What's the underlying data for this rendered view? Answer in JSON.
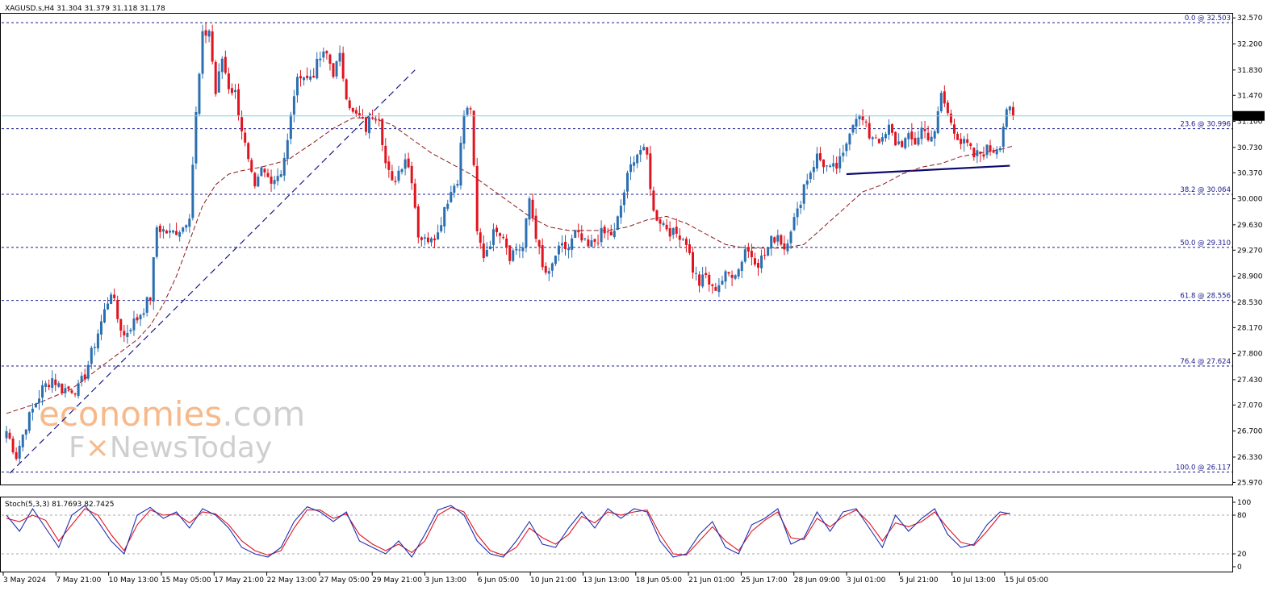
{
  "header": {
    "symbol_info": "XAGUSD.s,H4  31.304 31.379 31.118 31.178"
  },
  "stoch": {
    "label": "Stoch(5,3,3) 81.7693 82.7425",
    "levels": [
      "100",
      "80",
      "20",
      "0"
    ]
  },
  "watermark": {
    "line1_a": "economies",
    "line1_b": ".com",
    "line2_a": "F",
    "line2_b": "NewsToday"
  },
  "colors": {
    "bull": "#2a6fb0",
    "bear": "#e0141e",
    "ma": "#8b1a1a",
    "fib": "#1a1a8c",
    "stoch_main": "#1f2fb0",
    "stoch_signal": "#e0141e",
    "price_line": "#7fd4e0",
    "price_tag_bg": "#000000",
    "wm_orange": "#f7b98a"
  },
  "chart_data": {
    "type": "candlestick",
    "symbol": "XAGUSD.s",
    "timeframe": "H4",
    "ohlc_last": {
      "open": 31.304,
      "high": 31.379,
      "low": 31.118,
      "close": 31.178
    },
    "current_price": "31.178",
    "y_ticks": [
      "32.570",
      "32.200",
      "31.830",
      "31.470",
      "31.100",
      "30.730",
      "30.370",
      "30.000",
      "29.630",
      "29.270",
      "28.900",
      "28.530",
      "28.170",
      "27.800",
      "27.430",
      "27.070",
      "26.700",
      "26.330",
      "25.970"
    ],
    "ylim": [
      25.94,
      32.63
    ],
    "x_ticks": [
      "3 May 2024",
      "7 May 21:00",
      "10 May 13:00",
      "15 May 05:00",
      "17 May 21:00",
      "22 May 13:00",
      "27 May 05:00",
      "29 May 21:00",
      "3 Jun 13:00",
      "6 Jun 05:00",
      "10 Jun 21:00",
      "13 Jun 13:00",
      "18 Jun 05:00",
      "21 Jun 01:00",
      "25 Jun 17:00",
      "28 Jun 09:00",
      "3 Jul 01:00",
      "5 Jul 21:00",
      "10 Jul 13:00",
      "15 Jul 05:00"
    ],
    "fib_levels": [
      {
        "label": "0.0 @ 32.503",
        "value": 32.503
      },
      {
        "label": "23.6 @ 30.996",
        "value": 30.996
      },
      {
        "label": "38.2 @ 30.064",
        "value": 30.064
      },
      {
        "label": "50.0 @ 29.310",
        "value": 29.31
      },
      {
        "label": "61.8 @ 28.556",
        "value": 28.556
      },
      {
        "label": "76.4 @ 27.624",
        "value": 27.624
      },
      {
        "label": "100.0 @ 26.117",
        "value": 26.117
      }
    ],
    "close_path": [
      [
        0,
        26.7
      ],
      [
        3,
        26.35
      ],
      [
        6,
        26.8
      ],
      [
        8,
        27.0
      ],
      [
        11,
        27.3
      ],
      [
        14,
        27.45
      ],
      [
        17,
        27.3
      ],
      [
        20,
        27.3
      ],
      [
        22,
        27.3
      ],
      [
        24,
        27.5
      ],
      [
        26,
        27.8
      ],
      [
        28,
        28.1
      ],
      [
        30,
        28.4
      ],
      [
        32,
        28.7
      ],
      [
        34,
        28.3
      ],
      [
        36,
        28.05
      ],
      [
        38,
        28.2
      ],
      [
        40,
        28.3
      ],
      [
        42,
        28.45
      ],
      [
        44,
        28.6
      ],
      [
        46,
        29.6
      ],
      [
        48,
        29.55
      ],
      [
        50,
        29.5
      ],
      [
        52,
        29.55
      ],
      [
        54,
        29.6
      ],
      [
        56,
        29.8
      ],
      [
        58,
        31.2
      ],
      [
        60,
        32.3
      ],
      [
        62,
        32.4
      ],
      [
        64,
        31.5
      ],
      [
        66,
        32.0
      ],
      [
        68,
        31.6
      ],
      [
        70,
        31.5
      ],
      [
        72,
        31.0
      ],
      [
        74,
        30.5
      ],
      [
        76,
        30.1
      ],
      [
        78,
        30.4
      ],
      [
        80,
        30.3
      ],
      [
        82,
        30.3
      ],
      [
        84,
        30.4
      ],
      [
        86,
        30.8
      ],
      [
        88,
        31.5
      ],
      [
        90,
        31.8
      ],
      [
        92,
        31.7
      ],
      [
        94,
        31.8
      ],
      [
        96,
        32.0
      ],
      [
        98,
        32.05
      ],
      [
        100,
        31.8
      ],
      [
        102,
        32.0
      ],
      [
        104,
        31.5
      ],
      [
        106,
        31.2
      ],
      [
        108,
        31.15
      ],
      [
        110,
        31.0
      ],
      [
        112,
        31.2
      ],
      [
        114,
        31.2
      ],
      [
        116,
        30.5
      ],
      [
        118,
        30.2
      ],
      [
        120,
        30.4
      ],
      [
        122,
        30.6
      ],
      [
        124,
        30.3
      ],
      [
        126,
        29.5
      ],
      [
        128,
        29.4
      ],
      [
        130,
        29.5
      ],
      [
        132,
        29.5
      ],
      [
        134,
        29.9
      ],
      [
        136,
        30.1
      ],
      [
        138,
        30.3
      ],
      [
        140,
        31.2
      ],
      [
        142,
        31.3
      ],
      [
        144,
        29.5
      ],
      [
        146,
        29.2
      ],
      [
        148,
        29.4
      ],
      [
        150,
        29.6
      ],
      [
        152,
        29.5
      ],
      [
        154,
        29.2
      ],
      [
        156,
        29.3
      ],
      [
        158,
        29.3
      ],
      [
        160,
        30.0
      ],
      [
        162,
        29.5
      ],
      [
        164,
        29.0
      ],
      [
        166,
        28.9
      ],
      [
        168,
        29.2
      ],
      [
        170,
        29.3
      ],
      [
        172,
        29.3
      ],
      [
        174,
        29.5
      ],
      [
        176,
        29.4
      ],
      [
        178,
        29.3
      ],
      [
        180,
        29.4
      ],
      [
        182,
        29.5
      ],
      [
        184,
        29.5
      ],
      [
        186,
        29.5
      ],
      [
        188,
        29.9
      ],
      [
        190,
        30.3
      ],
      [
        192,
        30.6
      ],
      [
        194,
        30.7
      ],
      [
        196,
        30.6
      ],
      [
        198,
        29.8
      ],
      [
        200,
        29.7
      ],
      [
        202,
        29.6
      ],
      [
        204,
        29.5
      ],
      [
        206,
        29.5
      ],
      [
        208,
        29.4
      ],
      [
        210,
        29.0
      ],
      [
        212,
        28.8
      ],
      [
        214,
        28.9
      ],
      [
        216,
        28.7
      ],
      [
        218,
        28.8
      ],
      [
        220,
        28.9
      ],
      [
        222,
        28.95
      ],
      [
        224,
        29.0
      ],
      [
        226,
        29.3
      ],
      [
        228,
        29.2
      ],
      [
        230,
        29.1
      ],
      [
        232,
        29.2
      ],
      [
        234,
        29.4
      ],
      [
        236,
        29.5
      ],
      [
        238,
        29.3
      ],
      [
        240,
        29.6
      ],
      [
        242,
        29.8
      ],
      [
        244,
        30.2
      ],
      [
        246,
        30.4
      ],
      [
        248,
        30.6
      ],
      [
        250,
        30.5
      ],
      [
        252,
        30.4
      ],
      [
        254,
        30.45
      ],
      [
        256,
        30.6
      ],
      [
        258,
        31.0
      ],
      [
        260,
        31.2
      ],
      [
        262,
        31.1
      ],
      [
        264,
        30.9
      ],
      [
        266,
        30.9
      ],
      [
        268,
        30.8
      ],
      [
        270,
        31.0
      ],
      [
        272,
        30.8
      ],
      [
        274,
        30.8
      ],
      [
        276,
        30.85
      ],
      [
        278,
        30.8
      ],
      [
        280,
        31.0
      ],
      [
        282,
        30.9
      ],
      [
        284,
        30.9
      ],
      [
        286,
        31.5
      ],
      [
        288,
        31.2
      ],
      [
        290,
        31.0
      ],
      [
        292,
        30.8
      ],
      [
        294,
        30.75
      ],
      [
        296,
        30.6
      ],
      [
        298,
        30.65
      ],
      [
        300,
        30.7
      ],
      [
        302,
        30.7
      ],
      [
        304,
        30.8
      ],
      [
        306,
        31.3
      ],
      [
        308,
        31.15
      ]
    ],
    "ma_path": [
      [
        0,
        26.95
      ],
      [
        10,
        27.1
      ],
      [
        20,
        27.3
      ],
      [
        30,
        27.65
      ],
      [
        40,
        28.0
      ],
      [
        44,
        28.2
      ],
      [
        48,
        28.5
      ],
      [
        52,
        28.9
      ],
      [
        56,
        29.4
      ],
      [
        60,
        29.9
      ],
      [
        64,
        30.2
      ],
      [
        68,
        30.35
      ],
      [
        72,
        30.4
      ],
      [
        78,
        30.45
      ],
      [
        86,
        30.55
      ],
      [
        94,
        30.8
      ],
      [
        100,
        31.0
      ],
      [
        106,
        31.15
      ],
      [
        112,
        31.15
      ],
      [
        118,
        31.05
      ],
      [
        124,
        30.85
      ],
      [
        130,
        30.65
      ],
      [
        136,
        30.5
      ],
      [
        142,
        30.35
      ],
      [
        148,
        30.15
      ],
      [
        154,
        29.95
      ],
      [
        160,
        29.75
      ],
      [
        166,
        29.6
      ],
      [
        172,
        29.55
      ],
      [
        178,
        29.55
      ],
      [
        184,
        29.55
      ],
      [
        190,
        29.6
      ],
      [
        196,
        29.7
      ],
      [
        202,
        29.75
      ],
      [
        208,
        29.65
      ],
      [
        214,
        29.5
      ],
      [
        220,
        29.35
      ],
      [
        226,
        29.3
      ],
      [
        232,
        29.3
      ],
      [
        238,
        29.3
      ],
      [
        244,
        29.35
      ],
      [
        250,
        29.6
      ],
      [
        256,
        29.85
      ],
      [
        262,
        30.1
      ],
      [
        268,
        30.2
      ],
      [
        274,
        30.35
      ],
      [
        280,
        30.45
      ],
      [
        286,
        30.5
      ],
      [
        292,
        30.6
      ],
      [
        298,
        30.65
      ],
      [
        304,
        30.7
      ],
      [
        308,
        30.75
      ]
    ],
    "trend_lines": [
      {
        "from": [
          1,
          26.1
        ],
        "to": [
          125,
          31.83
        ],
        "style": "dashed"
      },
      {
        "from": [
          257,
          30.35
        ],
        "to": [
          307,
          30.47
        ],
        "style": "solid"
      }
    ],
    "stoch_main": [
      [
        0,
        80
      ],
      [
        4,
        55
      ],
      [
        8,
        90
      ],
      [
        12,
        60
      ],
      [
        16,
        30
      ],
      [
        20,
        80
      ],
      [
        24,
        95
      ],
      [
        28,
        70
      ],
      [
        32,
        40
      ],
      [
        36,
        20
      ],
      [
        40,
        80
      ],
      [
        44,
        92
      ],
      [
        48,
        75
      ],
      [
        52,
        85
      ],
      [
        56,
        60
      ],
      [
        60,
        90
      ],
      [
        64,
        80
      ],
      [
        68,
        60
      ],
      [
        72,
        30
      ],
      [
        76,
        20
      ],
      [
        80,
        15
      ],
      [
        84,
        30
      ],
      [
        88,
        70
      ],
      [
        92,
        93
      ],
      [
        96,
        85
      ],
      [
        100,
        70
      ],
      [
        104,
        85
      ],
      [
        108,
        40
      ],
      [
        112,
        30
      ],
      [
        116,
        20
      ],
      [
        120,
        40
      ],
      [
        124,
        15
      ],
      [
        128,
        50
      ],
      [
        132,
        88
      ],
      [
        136,
        95
      ],
      [
        140,
        80
      ],
      [
        144,
        40
      ],
      [
        148,
        20
      ],
      [
        152,
        15
      ],
      [
        156,
        40
      ],
      [
        160,
        70
      ],
      [
        164,
        35
      ],
      [
        168,
        30
      ],
      [
        172,
        60
      ],
      [
        176,
        85
      ],
      [
        180,
        60
      ],
      [
        184,
        90
      ],
      [
        188,
        75
      ],
      [
        192,
        90
      ],
      [
        196,
        85
      ],
      [
        200,
        40
      ],
      [
        204,
        15
      ],
      [
        208,
        20
      ],
      [
        212,
        50
      ],
      [
        216,
        70
      ],
      [
        220,
        30
      ],
      [
        224,
        20
      ],
      [
        228,
        65
      ],
      [
        232,
        75
      ],
      [
        236,
        90
      ],
      [
        240,
        35
      ],
      [
        244,
        45
      ],
      [
        248,
        85
      ],
      [
        252,
        55
      ],
      [
        256,
        85
      ],
      [
        260,
        90
      ],
      [
        264,
        60
      ],
      [
        268,
        30
      ],
      [
        272,
        80
      ],
      [
        276,
        55
      ],
      [
        280,
        75
      ],
      [
        284,
        90
      ],
      [
        288,
        50
      ],
      [
        292,
        30
      ],
      [
        296,
        35
      ],
      [
        300,
        65
      ],
      [
        304,
        85
      ],
      [
        307,
        82
      ]
    ],
    "stoch_signal": [
      [
        0,
        75
      ],
      [
        4,
        70
      ],
      [
        8,
        80
      ],
      [
        12,
        72
      ],
      [
        16,
        40
      ],
      [
        20,
        65
      ],
      [
        24,
        90
      ],
      [
        28,
        80
      ],
      [
        32,
        50
      ],
      [
        36,
        25
      ],
      [
        40,
        65
      ],
      [
        44,
        88
      ],
      [
        48,
        80
      ],
      [
        52,
        82
      ],
      [
        56,
        68
      ],
      [
        60,
        85
      ],
      [
        64,
        82
      ],
      [
        68,
        65
      ],
      [
        72,
        40
      ],
      [
        76,
        25
      ],
      [
        80,
        18
      ],
      [
        84,
        25
      ],
      [
        88,
        60
      ],
      [
        92,
        88
      ],
      [
        96,
        88
      ],
      [
        100,
        75
      ],
      [
        104,
        82
      ],
      [
        108,
        50
      ],
      [
        112,
        35
      ],
      [
        116,
        25
      ],
      [
        120,
        35
      ],
      [
        124,
        22
      ],
      [
        128,
        40
      ],
      [
        132,
        80
      ],
      [
        136,
        92
      ],
      [
        140,
        85
      ],
      [
        144,
        50
      ],
      [
        148,
        25
      ],
      [
        152,
        18
      ],
      [
        156,
        30
      ],
      [
        160,
        60
      ],
      [
        164,
        45
      ],
      [
        168,
        35
      ],
      [
        172,
        50
      ],
      [
        176,
        78
      ],
      [
        180,
        68
      ],
      [
        184,
        85
      ],
      [
        188,
        80
      ],
      [
        192,
        85
      ],
      [
        196,
        88
      ],
      [
        200,
        50
      ],
      [
        204,
        20
      ],
      [
        208,
        18
      ],
      [
        212,
        40
      ],
      [
        216,
        62
      ],
      [
        220,
        40
      ],
      [
        224,
        25
      ],
      [
        228,
        55
      ],
      [
        232,
        72
      ],
      [
        236,
        85
      ],
      [
        240,
        45
      ],
      [
        244,
        42
      ],
      [
        248,
        75
      ],
      [
        252,
        62
      ],
      [
        256,
        78
      ],
      [
        260,
        88
      ],
      [
        264,
        68
      ],
      [
        268,
        40
      ],
      [
        272,
        68
      ],
      [
        276,
        62
      ],
      [
        280,
        70
      ],
      [
        284,
        85
      ],
      [
        288,
        60
      ],
      [
        292,
        38
      ],
      [
        296,
        33
      ],
      [
        300,
        55
      ],
      [
        304,
        80
      ],
      [
        307,
        83
      ]
    ]
  }
}
